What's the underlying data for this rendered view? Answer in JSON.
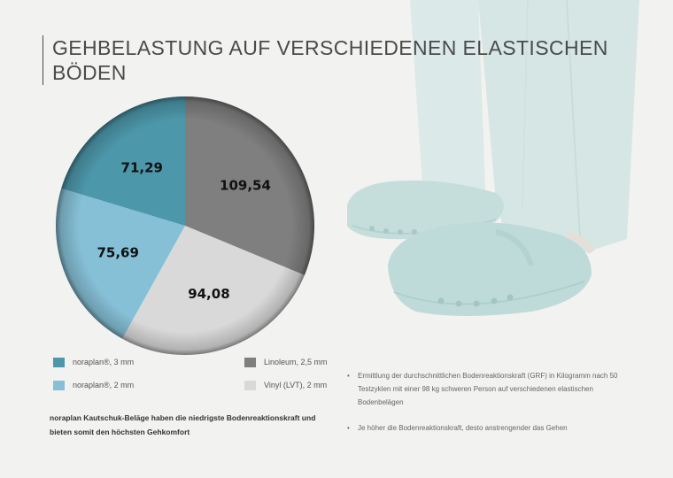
{
  "title": "GEHBELASTUNG AUF VERSCHIEDENEN ELASTISCHEN BÖDEN",
  "chart_data": {
    "type": "pie",
    "start_angle_deg": 0,
    "direction": "clockwise",
    "categories": [
      "Linoleum, 2,5 mm",
      "Vinyl (LVT), 2 mm",
      "noraplan®, 2 mm",
      "noraplan®, 3 mm"
    ],
    "values": [
      109.54,
      94.08,
      75.69,
      71.29
    ],
    "value_labels": [
      "109,54",
      "94,08",
      "75,69",
      "71,29"
    ],
    "colors": [
      "#7f7f7f",
      "#d9d9d9",
      "#86c0d6",
      "#4c97aa"
    ],
    "label_colors": [
      "#111111",
      "#111111",
      "#111111",
      "#111111"
    ],
    "legend_placement": "bottom"
  },
  "legend": {
    "left": [
      {
        "label": "noraplan®, 3 mm",
        "color": "#4c97aa"
      },
      {
        "label": "noraplan®, 2 mm",
        "color": "#86c0d6"
      }
    ],
    "right": [
      {
        "label": "Linoleum, 2,5 mm",
        "color": "#7f7f7f"
      },
      {
        "label": "Vinyl (LVT), 2 mm",
        "color": "#d9d9d9"
      }
    ]
  },
  "note": "noraplan Kautschuk-Beläge haben die niedrigste Bodenreaktionskraft und bieten somit den höchsten Gehkomfort",
  "bullets": [
    {
      "marker": "•",
      "text": "Ermittlung der durchschnittlichen Bodenreaktionskraft (GRF) in Kilogramm nach 50 Testzyklen mit einer 98 kg schweren Person auf verschiedenen elastischen Bodenbelägen"
    },
    {
      "marker": "•",
      "text": "Je höher die Bodenreaktionskraft, desto anstrengender das Gehen"
    }
  ]
}
